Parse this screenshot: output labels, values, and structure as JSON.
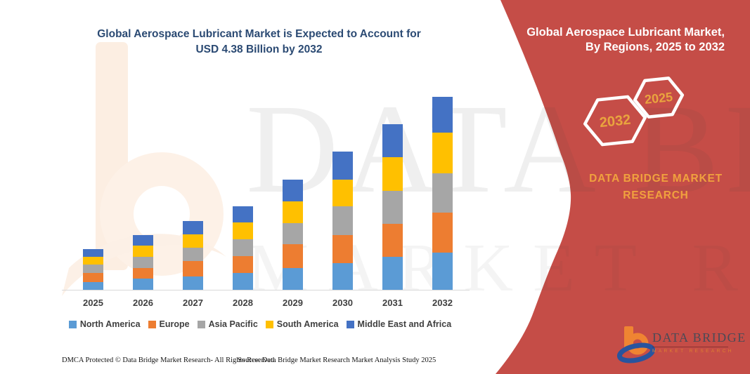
{
  "header": {
    "title_line1": "Global Aerospace Lubricant Market is Expected to Account for",
    "title_line2": "USD 4.38 Billion by 2032"
  },
  "chart_data": {
    "type": "bar",
    "stacked": true,
    "title": "Global Aerospace Lubricant Market is Expected to Account for USD 4.38 Billion by 2032",
    "unit": "USD Billion",
    "xlabel": "",
    "ylabel": "",
    "ylim": [
      0,
      4.38
    ],
    "grid": false,
    "axis_values_hidden": true,
    "legend_position": "bottom",
    "categories": [
      "2025",
      "2026",
      "2027",
      "2028",
      "2029",
      "2030",
      "2031",
      "2032"
    ],
    "series": [
      {
        "name": "North America",
        "color": "#5b9bd5",
        "values": [
          0.18,
          0.25,
          0.31,
          0.38,
          0.5,
          0.61,
          0.75,
          0.85
        ]
      },
      {
        "name": "Europe",
        "color": "#ed7d31",
        "values": [
          0.21,
          0.25,
          0.35,
          0.38,
          0.53,
          0.63,
          0.75,
          0.9
        ]
      },
      {
        "name": "Asia Pacific",
        "color": "#a6a6a6",
        "values": [
          0.18,
          0.25,
          0.3,
          0.38,
          0.48,
          0.66,
          0.74,
          0.89
        ]
      },
      {
        "name": "South America",
        "color": "#ffc000",
        "values": [
          0.18,
          0.25,
          0.3,
          0.38,
          0.5,
          0.6,
          0.77,
          0.93
        ]
      },
      {
        "name": "Middle East and Africa",
        "color": "#4472c4",
        "values": [
          0.18,
          0.25,
          0.3,
          0.37,
          0.49,
          0.63,
          0.75,
          0.81
        ]
      }
    ],
    "totals_by_year": [
      0.93,
      1.25,
      1.56,
      1.89,
      2.5,
      3.13,
      3.76,
      4.38
    ]
  },
  "side_panel": {
    "background_color": "#c54d47",
    "title_line1": "Global Aerospace Lubricant Market,",
    "title_line2": "By Regions, 2025 to 2032",
    "hexagons": [
      {
        "label": "2032"
      },
      {
        "label": "2025"
      }
    ],
    "brand_line1": "DATA BRIDGE MARKET",
    "brand_line2": "RESEARCH",
    "accent_text_color": "#f0a13e"
  },
  "watermark": {
    "line1": "DATA BRIDGE",
    "line2": "MARKET RESEARCH"
  },
  "logo": {
    "name": "DATA BRIDGE",
    "subtext": "MARKET RESEARCH"
  },
  "footer": {
    "left": "DMCA Protected © Data Bridge Market Research-  All Rights Reserved.",
    "right": "Source: Data Bridge Market Research  Market Analysis Study 2025"
  }
}
